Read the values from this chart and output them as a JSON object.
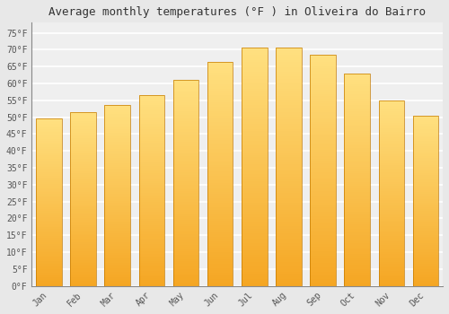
{
  "title": "Average monthly temperatures (°F ) in Oliveira do Bairro",
  "months": [
    "Jan",
    "Feb",
    "Mar",
    "Apr",
    "May",
    "Jun",
    "Jul",
    "Aug",
    "Sep",
    "Oct",
    "Nov",
    "Dec"
  ],
  "values": [
    49.5,
    51.5,
    53.5,
    56.5,
    61.0,
    66.5,
    70.5,
    70.5,
    68.5,
    63.0,
    55.0,
    50.5
  ],
  "bar_color_bottom": "#F5A623",
  "bar_color_top": "#FFE080",
  "bar_edge_color": "#C47A00",
  "yticks": [
    0,
    5,
    10,
    15,
    20,
    25,
    30,
    35,
    40,
    45,
    50,
    55,
    60,
    65,
    70,
    75
  ],
  "ylim": [
    0,
    78
  ],
  "background_color": "#e8e8e8",
  "plot_bg_color": "#efefef",
  "grid_color": "#ffffff",
  "title_fontsize": 9,
  "tick_fontsize": 7,
  "font_family": "monospace"
}
